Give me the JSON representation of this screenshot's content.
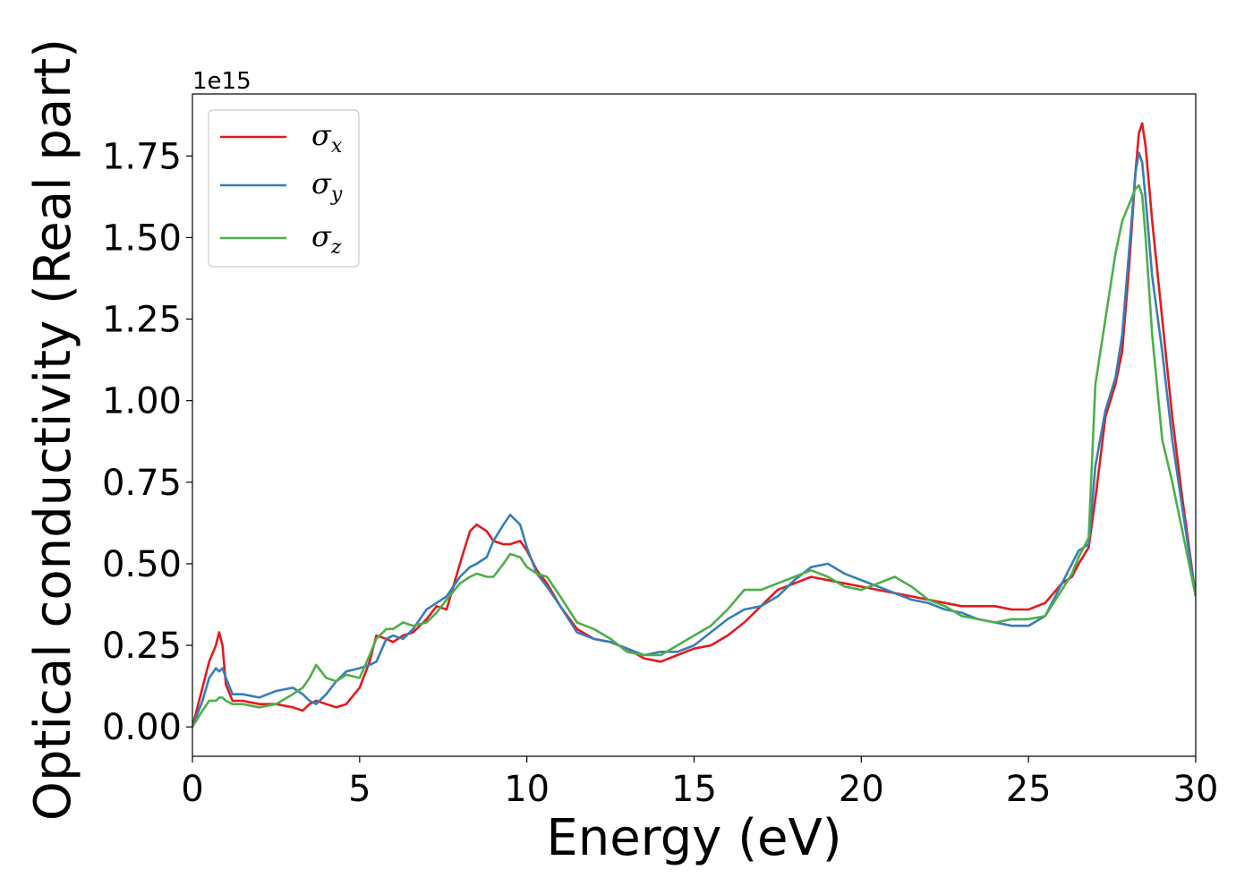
{
  "chart_data": {
    "type": "line",
    "xlabel": "Energy (eV)",
    "ylabel": "Optical conductivity (Real part)",
    "y_offset_label": "1e15",
    "xlim": [
      0,
      30
    ],
    "ylim": [
      -0.09,
      1.94
    ],
    "x_ticks": [
      0,
      5,
      10,
      15,
      20,
      25,
      30
    ],
    "x_tick_labels": [
      "0",
      "5",
      "10",
      "15",
      "20",
      "25",
      "30"
    ],
    "y_ticks": [
      0,
      0.25,
      0.5,
      0.75,
      1.0,
      1.25,
      1.5,
      1.75
    ],
    "y_tick_labels": [
      "0.00",
      "0.25",
      "0.50",
      "0.75",
      "1.00",
      "1.25",
      "1.50",
      "1.75"
    ],
    "grid": false,
    "legend_position": "top-left",
    "x": [
      0,
      0.3,
      0.5,
      0.7,
      0.8,
      0.9,
      1.0,
      1.2,
      1.5,
      2.0,
      2.5,
      3.0,
      3.3,
      3.5,
      3.7,
      4.0,
      4.3,
      4.6,
      5.0,
      5.3,
      5.5,
      5.8,
      6.0,
      6.3,
      6.6,
      7.0,
      7.3,
      7.6,
      8.0,
      8.3,
      8.5,
      8.8,
      9.0,
      9.3,
      9.5,
      9.8,
      10.0,
      10.3,
      10.6,
      11.0,
      11.5,
      12.0,
      12.5,
      13.0,
      13.5,
      14.0,
      14.5,
      15.0,
      15.5,
      16.0,
      16.5,
      17.0,
      17.5,
      18.0,
      18.5,
      19.0,
      19.5,
      20.0,
      20.5,
      21.0,
      21.5,
      22.0,
      22.5,
      23.0,
      23.5,
      24.0,
      24.5,
      25.0,
      25.5,
      26.0,
      26.3,
      26.5,
      26.8,
      27.0,
      27.3,
      27.6,
      27.8,
      28.0,
      28.2,
      28.3,
      28.4,
      28.5,
      28.7,
      29.0,
      29.3,
      29.6,
      30.0
    ],
    "series": [
      {
        "name": "σx",
        "color": "#e41a1c",
        "values": [
          0.0,
          0.12,
          0.2,
          0.25,
          0.29,
          0.25,
          0.13,
          0.08,
          0.08,
          0.07,
          0.07,
          0.06,
          0.05,
          0.07,
          0.08,
          0.07,
          0.06,
          0.07,
          0.12,
          0.2,
          0.28,
          0.27,
          0.26,
          0.28,
          0.29,
          0.33,
          0.37,
          0.36,
          0.5,
          0.6,
          0.62,
          0.6,
          0.57,
          0.56,
          0.56,
          0.57,
          0.54,
          0.48,
          0.44,
          0.37,
          0.3,
          0.27,
          0.26,
          0.24,
          0.21,
          0.2,
          0.22,
          0.24,
          0.25,
          0.28,
          0.32,
          0.37,
          0.42,
          0.44,
          0.46,
          0.45,
          0.44,
          0.43,
          0.42,
          0.41,
          0.4,
          0.39,
          0.38,
          0.37,
          0.37,
          0.37,
          0.36,
          0.36,
          0.38,
          0.44,
          0.46,
          0.5,
          0.55,
          0.7,
          0.95,
          1.05,
          1.15,
          1.4,
          1.7,
          1.82,
          1.85,
          1.78,
          1.55,
          1.25,
          0.95,
          0.7,
          0.4
        ]
      },
      {
        "name": "σy",
        "color": "#377eb8",
        "values": [
          0.0,
          0.08,
          0.15,
          0.18,
          0.17,
          0.18,
          0.15,
          0.1,
          0.1,
          0.09,
          0.11,
          0.12,
          0.1,
          0.08,
          0.07,
          0.1,
          0.14,
          0.17,
          0.18,
          0.19,
          0.2,
          0.27,
          0.28,
          0.27,
          0.3,
          0.36,
          0.38,
          0.4,
          0.46,
          0.49,
          0.5,
          0.52,
          0.57,
          0.62,
          0.65,
          0.62,
          0.55,
          0.47,
          0.43,
          0.37,
          0.29,
          0.27,
          0.26,
          0.24,
          0.22,
          0.23,
          0.23,
          0.25,
          0.29,
          0.33,
          0.36,
          0.37,
          0.4,
          0.45,
          0.49,
          0.5,
          0.47,
          0.45,
          0.43,
          0.41,
          0.39,
          0.38,
          0.36,
          0.35,
          0.33,
          0.32,
          0.31,
          0.31,
          0.34,
          0.44,
          0.5,
          0.54,
          0.56,
          0.8,
          0.97,
          1.07,
          1.2,
          1.45,
          1.7,
          1.76,
          1.73,
          1.62,
          1.38,
          1.15,
          0.88,
          0.67,
          0.4
        ]
      },
      {
        "name": "σz",
        "color": "#4daf4a",
        "values": [
          0.0,
          0.05,
          0.08,
          0.08,
          0.09,
          0.09,
          0.08,
          0.07,
          0.07,
          0.06,
          0.07,
          0.1,
          0.12,
          0.15,
          0.19,
          0.15,
          0.14,
          0.16,
          0.15,
          0.22,
          0.27,
          0.3,
          0.3,
          0.32,
          0.31,
          0.32,
          0.35,
          0.39,
          0.44,
          0.46,
          0.47,
          0.46,
          0.46,
          0.5,
          0.53,
          0.52,
          0.49,
          0.47,
          0.46,
          0.4,
          0.32,
          0.3,
          0.27,
          0.23,
          0.22,
          0.22,
          0.25,
          0.28,
          0.31,
          0.36,
          0.42,
          0.42,
          0.44,
          0.46,
          0.48,
          0.46,
          0.43,
          0.42,
          0.44,
          0.46,
          0.43,
          0.39,
          0.37,
          0.34,
          0.33,
          0.32,
          0.33,
          0.33,
          0.34,
          0.42,
          0.47,
          0.52,
          0.58,
          1.05,
          1.25,
          1.45,
          1.55,
          1.6,
          1.65,
          1.66,
          1.63,
          1.5,
          1.2,
          0.88,
          0.75,
          0.6,
          0.4
        ]
      }
    ]
  }
}
